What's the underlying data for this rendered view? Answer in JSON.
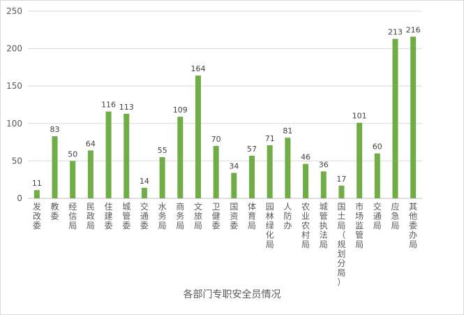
{
  "chart_data": {
    "type": "bar",
    "categories": [
      "发改委",
      "教委",
      "经信局",
      "民政局",
      "住建委",
      "城管委",
      "交通委",
      "水务局",
      "商务局",
      "文旅局",
      "卫健委",
      "国资委",
      "体育局",
      "园林绿化局",
      "人防办",
      "农业农村局",
      "城管执法局",
      "国土局（规划分局）",
      "市场监管局",
      "交通局",
      "应急局",
      "其他委办局"
    ],
    "values": [
      11,
      83,
      50,
      64,
      116,
      113,
      14,
      55,
      109,
      164,
      70,
      34,
      57,
      71,
      81,
      46,
      36,
      17,
      101,
      60,
      213,
      216
    ],
    "yticks": [
      0,
      50,
      100,
      150,
      200,
      250
    ],
    "ylim": [
      0,
      250
    ],
    "xlabel": "各部门专职安全员情况",
    "ylabel": "",
    "title": "",
    "grid": true,
    "bar_color": "#70ad47",
    "grid_color": "#d9d9d9"
  }
}
